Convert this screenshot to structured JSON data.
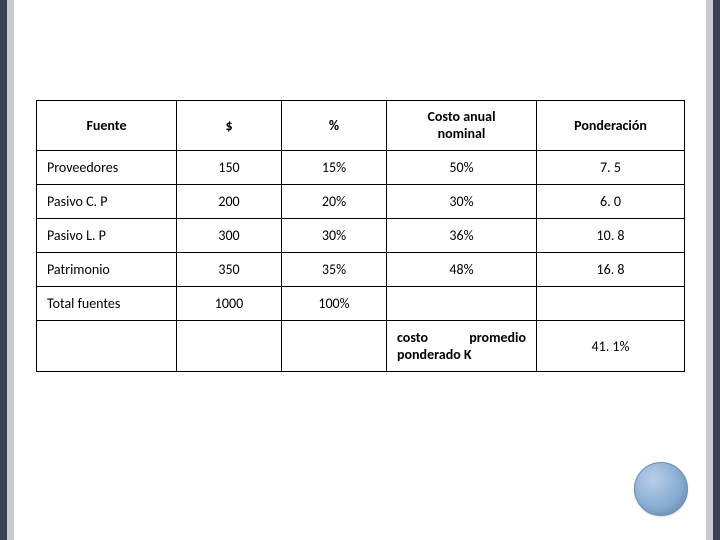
{
  "table": {
    "columns": {
      "fuente": "Fuente",
      "dollar": "$",
      "pct": "%",
      "costo_l1": "Costo anual",
      "costo_l2": "nominal",
      "pond": "Ponderación"
    },
    "rows": [
      {
        "fuente": "Proveedores",
        "dollar": "150",
        "pct": "15%",
        "costo": "50%",
        "pond": "7. 5"
      },
      {
        "fuente": "Pasivo C. P",
        "dollar": "200",
        "pct": "20%",
        "costo": "30%",
        "pond": "6. 0"
      },
      {
        "fuente": "Pasivo L. P",
        "dollar": "300",
        "pct": "30%",
        "costo": "36%",
        "pond": "10. 8"
      },
      {
        "fuente": "Patrimonio",
        "dollar": "350",
        "pct": "35%",
        "costo": "48%",
        "pond": "16. 8"
      },
      {
        "fuente": "Total fuentes",
        "dollar": "1000",
        "pct": "100%",
        "costo": "",
        "pond": ""
      }
    ],
    "footer": {
      "label_a": "costo",
      "label_b": "promedio",
      "label_c": "ponderado K",
      "value": "41. 1%"
    }
  },
  "colors": {
    "rail_dark": "#3b4150",
    "rail_light": "#c9cbd1",
    "border": "#000000",
    "bg": "#ffffff"
  }
}
